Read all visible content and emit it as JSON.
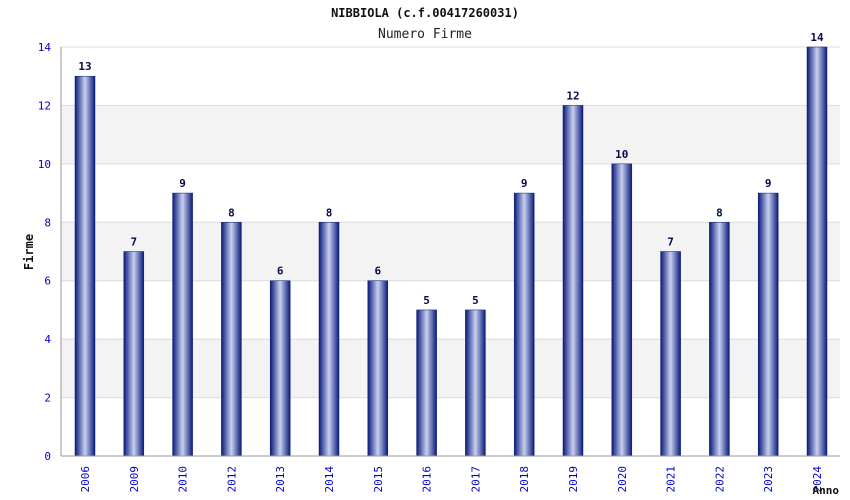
{
  "chart_data": {
    "type": "bar",
    "title": "NIBBIOLA (c.f.00417260031)",
    "subtitle": "Numero Firme",
    "xlabel": "Anno",
    "ylabel": "Firme",
    "ylim": [
      0,
      14
    ],
    "yticks": [
      0,
      2,
      4,
      6,
      8,
      10,
      12,
      14
    ],
    "grid": true,
    "categories": [
      "2006",
      "2009",
      "2010",
      "2012",
      "2013",
      "2014",
      "2015",
      "2016",
      "2017",
      "2018",
      "2019",
      "2020",
      "2021",
      "2022",
      "2023",
      "2024"
    ],
    "values": [
      13,
      7,
      9,
      8,
      6,
      8,
      6,
      5,
      5,
      9,
      12,
      10,
      7,
      8,
      9,
      14
    ],
    "colors": {
      "bar_dark": "#0a1a7a",
      "bar_light": "#c8d0f0",
      "label": "#0a0a4a",
      "tick_label": "#0000cc",
      "band": "#f3f3f3",
      "grid": "#dcdcdc",
      "axis": "#999999"
    }
  }
}
